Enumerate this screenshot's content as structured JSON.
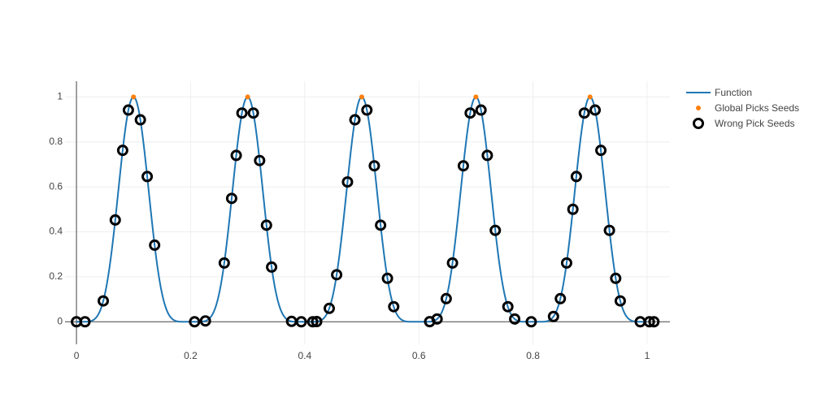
{
  "chart_data": {
    "type": "line",
    "title": "",
    "xlabel": "",
    "ylabel": "",
    "xlim": [
      -0.02,
      1.04
    ],
    "ylim": [
      -0.1,
      1.07
    ],
    "x_ticks": [
      0,
      0.2,
      0.4,
      0.6,
      0.8,
      1
    ],
    "x_tick_labels": [
      "0",
      "0.2",
      "0.4",
      "0.6",
      "0.8",
      "1"
    ],
    "y_ticks": [
      0,
      0.2,
      0.4,
      0.6,
      0.8,
      1
    ],
    "y_tick_labels": [
      "0",
      "0.2",
      "0.4",
      "0.6",
      "0.8",
      "1"
    ],
    "grid": true,
    "legend_position": "top-right",
    "colors": {
      "function": "#1f77b4",
      "global_picks": "#ff7f0e",
      "wrong_picks": "#000000",
      "grid": "#eeeeee",
      "axis": "#444444"
    },
    "series": [
      {
        "name": "Function",
        "kind": "line",
        "function": {
          "form": "sin^6(5*pi*x)",
          "x_range": [
            0,
            1
          ]
        }
      },
      {
        "name": "Global Picks Seeds",
        "kind": "markers",
        "x": [
          0.1,
          0.3,
          0.5,
          0.7,
          0.9
        ],
        "y": [
          1,
          1,
          1,
          1,
          1
        ]
      },
      {
        "name": "Wrong Pick Seeds",
        "kind": "open-markers",
        "x": [
          0.0,
          0.015,
          0.047,
          0.068,
          0.081,
          0.091,
          0.112,
          0.124,
          0.137,
          0.207,
          0.226,
          0.259,
          0.272,
          0.28,
          0.29,
          0.31,
          0.321,
          0.333,
          0.342,
          0.377,
          0.394,
          0.414,
          0.421,
          0.443,
          0.456,
          0.475,
          0.488,
          0.509,
          0.522,
          0.533,
          0.545,
          0.556,
          0.619,
          0.632,
          0.648,
          0.659,
          0.678,
          0.69,
          0.709,
          0.72,
          0.734,
          0.756,
          0.768,
          0.797,
          0.836,
          0.848,
          0.859,
          0.87,
          0.876,
          0.89,
          0.909,
          0.919,
          0.934,
          0.945,
          0.953,
          0.988,
          1.004,
          1.012
        ]
      }
    ],
    "legend": [
      "Function",
      "Global Picks Seeds",
      "Wrong Pick Seeds"
    ]
  }
}
